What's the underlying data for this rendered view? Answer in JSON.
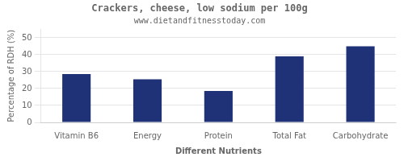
{
  "chart_data": {
    "type": "bar",
    "title": "Crackers, cheese, low sodium per 100g",
    "subtitle": "www.dietandfitnesstoday.com",
    "xlabel": "Different Nutrients",
    "ylabel": "Percentage of RDH (%)",
    "categories": [
      "Vitamin B6",
      "Energy",
      "Protein",
      "Total Fat",
      "Carbohydrate"
    ],
    "values": [
      28.5,
      25.5,
      18.5,
      39.0,
      45.0
    ],
    "color": "#1f3278",
    "ylim": [
      0,
      55
    ],
    "yticks": [
      0,
      10,
      20,
      30,
      40,
      50
    ],
    "grid": true
  }
}
